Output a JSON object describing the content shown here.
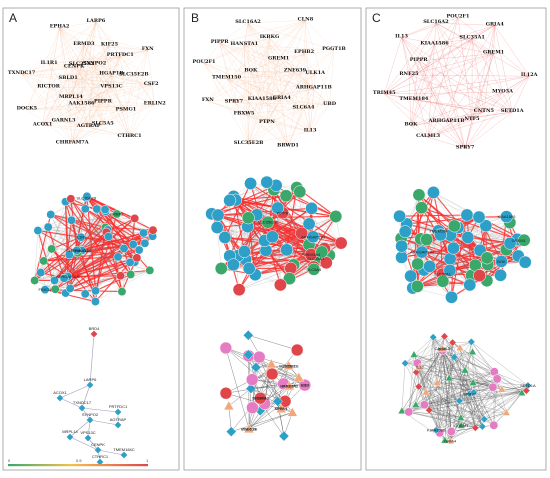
{
  "panels": [
    {
      "letter": "A",
      "top_genes": [
        "CSF2",
        "ACOX1",
        "LARP6",
        "CTHRC1",
        "TXNDC17",
        "FXN",
        "CHRFAM7A",
        "EPHA2",
        "ERLIN2",
        "DOCK5",
        "KIF25",
        "SLC5A5",
        "IL1R1",
        "SLC35E2B",
        "GARNL3",
        "ERMD3",
        "PSMG1",
        "RICTOR",
        "PRTFDC1",
        "AGTRAP",
        "CENPK",
        "VPS13C",
        "MRPL14",
        "SYNPO2",
        "PIPPR",
        "SBLD1",
        "HGAP1B",
        "AAK1586",
        "SLC35A2"
      ],
      "mid_genes": [
        "FBXO2",
        "TMEM184",
        "SLC35E2B",
        "IL1R1",
        "NRBP2",
        "CHRFAM7A",
        "ARHGAP11B"
      ],
      "bottom_genes": [
        "BRD4",
        "LARP6",
        "ACOX1",
        "TXNDC17",
        "PRTFDC1",
        "SYNPO2",
        "AGTRAP",
        "MRPL14",
        "VPS13C",
        "CENPK",
        "CTHRC1",
        "TMEM184C"
      ]
    },
    {
      "letter": "B",
      "top_genes": [
        "IL13",
        "POU2F1",
        "PGGT1B",
        "SLC35E2B",
        "SLC16A2",
        "UBD",
        "FXN",
        "CLN8",
        "BRWD1",
        "PIPPR",
        "ULK1A",
        "FBXW5",
        "IKBKG",
        "SLC6A4",
        "TMEM150",
        "EPHB2",
        "PTPN",
        "HANSTA1",
        "ARHGAP11B",
        "SPRY7",
        "GREM1",
        "GRIA4",
        "BOK",
        "ZNF639",
        "KIAA1586"
      ],
      "mid_genes": [
        "SLC35A1",
        "TMEM184",
        "ARHGAP11B",
        "SLC6A4",
        "SLC35E2B",
        "PIPPR"
      ],
      "bottom_genes": [
        "ZNF639",
        "IL13",
        "GREM1",
        "POU2F1",
        "SPRY7",
        "SLC16A2",
        "PGGT1B",
        "UBD",
        "SLC35E2B",
        "HANSTA1",
        "GRIA4",
        "IKBKG"
      ]
    },
    {
      "letter": "C",
      "top_genes": [
        "CALML3",
        "SLC16A2",
        "SETD1A",
        "TRIM45",
        "GRIA4",
        "SPRY7",
        "IL13",
        "IL12A",
        "BOK",
        "POU2F1",
        "CNTN5",
        "RNF25",
        "GREM1",
        "ARHGAP11B",
        "KIAA1586",
        "MYO3A",
        "TMEM184",
        "SLC35A1",
        "NTF5",
        "PIPPR"
      ],
      "mid_genes": [
        "TMEM184",
        "SLC35A1",
        "GREM1",
        "BOK",
        "ARHGAP11B",
        "KIAA1586"
      ],
      "bottom_genes": [
        "SETD1A",
        "SPRY7",
        "IL13",
        "GRIA4",
        "KIAA1586",
        "BOK",
        "GREM1",
        "CALML3"
      ]
    }
  ],
  "scale": {
    "min_label": "0",
    "mid_label": "0.5",
    "max_label": "1"
  },
  "colors": {
    "blue_node": "#2ea0c8",
    "green_node": "#3aa86a",
    "red_node": "#e0454a",
    "pink_node": "#e57bc3",
    "orange_node": "#f2a77a",
    "red_edge": "#ff2a2a",
    "gray_edge": "#8c8c8c"
  }
}
